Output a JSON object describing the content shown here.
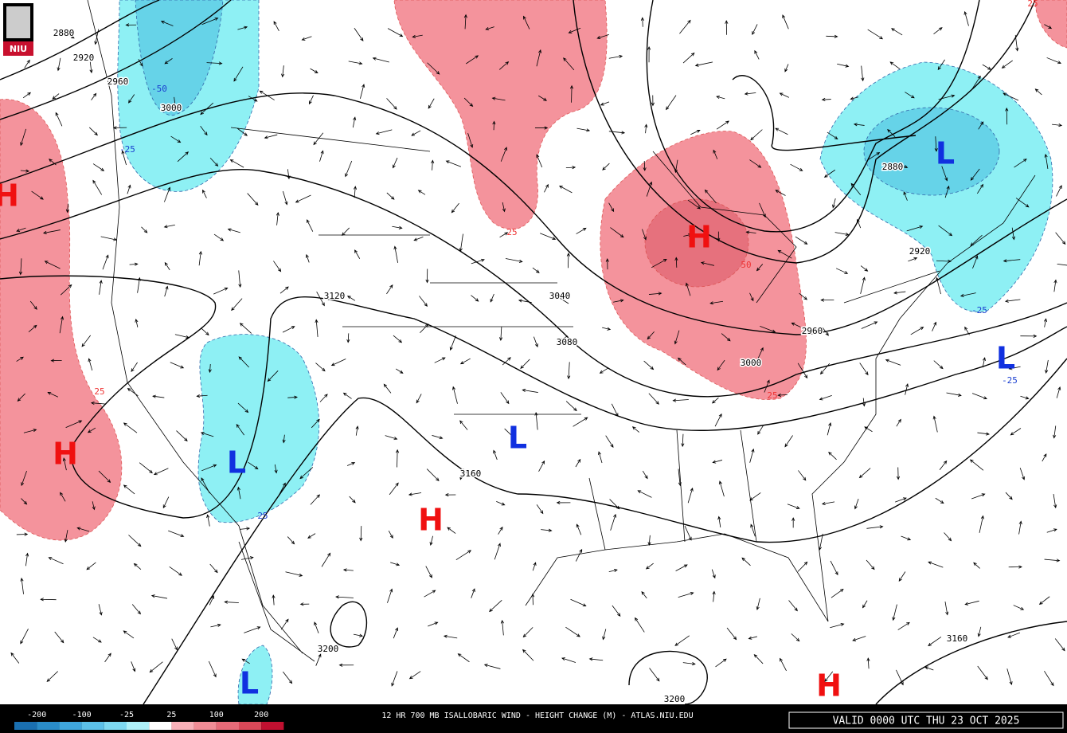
{
  "logo": "NIU",
  "contour_labels": [
    "2880",
    "2920",
    "2960",
    "-50",
    "3000",
    "-25",
    "3120",
    "3040",
    "3080",
    "3160",
    "3200",
    "3200",
    "3160",
    "2880",
    "2920",
    "2960",
    "3000",
    "25",
    "50",
    "25",
    "25",
    "-25",
    "-25",
    "25",
    "25"
  ],
  "pressure_centers": [
    "H",
    "H",
    "L",
    "L",
    "H",
    "H",
    "L",
    "L",
    "L",
    "H"
  ],
  "legend": {
    "ticks": [
      "-200",
      "-100",
      "-25",
      "25",
      "100",
      "200"
    ]
  },
  "footer": {
    "title": "12 HR 700 MB ISALLOBARIC WIND - HEIGHT CHANGE (M) - ATLAS.NIU.EDU",
    "valid": "VALID 0000 UTC THU 23 OCT 2025"
  }
}
